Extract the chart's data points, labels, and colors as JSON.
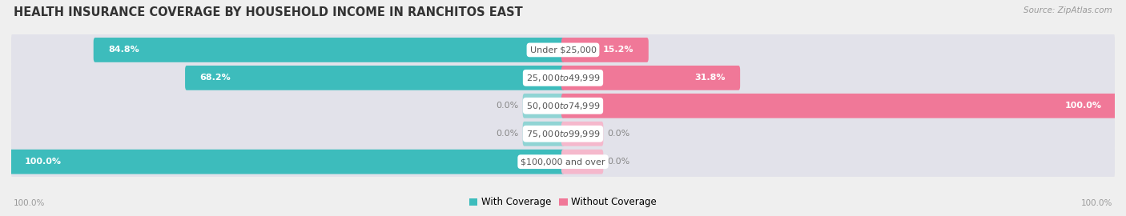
{
  "title": "HEALTH INSURANCE COVERAGE BY HOUSEHOLD INCOME IN RANCHITOS EAST",
  "source": "Source: ZipAtlas.com",
  "categories": [
    "Under $25,000",
    "$25,000 to $49,999",
    "$50,000 to $74,999",
    "$75,000 to $99,999",
    "$100,000 and over"
  ],
  "with_coverage": [
    84.8,
    68.2,
    0.0,
    0.0,
    100.0
  ],
  "without_coverage": [
    15.2,
    31.8,
    100.0,
    0.0,
    0.0
  ],
  "color_with": "#3dbcbc",
  "color_without": "#f07898",
  "color_with_light": "#90d4d4",
  "color_without_light": "#f5b8cc",
  "bg_color": "#efefef",
  "row_bg": "#e2e2ea",
  "title_color": "#333333",
  "label_color": "#555555",
  "value_color_on_bar": "#ffffff",
  "value_color_off": "#888888",
  "title_fontsize": 10.5,
  "label_fontsize": 8.0,
  "legend_fontsize": 8.5,
  "footer_fontsize": 7.5,
  "source_fontsize": 7.5
}
